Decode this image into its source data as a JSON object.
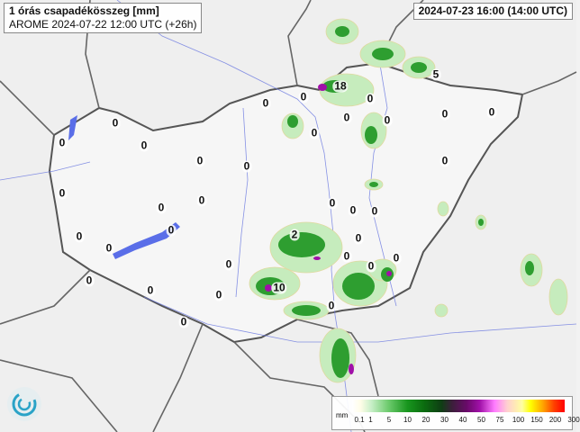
{
  "title": {
    "line1": "1 órás csapadékösszeg [mm]",
    "line2": "AROME 2024-07-22 12:00 UTC (+26h)"
  },
  "valid_time": "2024-07-23 16:00 (14:00 UTC)",
  "legend": {
    "unit": "mm",
    "ticks": [
      "0.1",
      "1",
      "5",
      "10",
      "20",
      "30",
      "40",
      "50",
      "75",
      "100",
      "150",
      "200",
      "300"
    ],
    "colors": [
      "#ffffff",
      "#c8efc8",
      "#18961e",
      "#0f3e14",
      "#6a0a6a",
      "#ff7cff",
      "#ffff00",
      "#ff0000"
    ]
  },
  "stations": [
    "0",
    "0",
    "0",
    "0",
    "0",
    "0",
    "0",
    "0",
    "0",
    "0",
    "0",
    "0",
    "0",
    "0",
    "0",
    "0",
    "0",
    "0",
    "0",
    "0",
    "0",
    "0",
    "0",
    "0",
    "0",
    "0",
    "0",
    "0",
    "0",
    "0",
    "0",
    "0",
    "0",
    "18",
    "5",
    "2",
    "10"
  ],
  "colors": {
    "border": "#555555",
    "river": "#5a6ee8",
    "lake": "#5a6ee8",
    "precip_light": "#b8e8b0",
    "precip_mid": "#2ea02e",
    "precip_heavy": "#a010a8"
  },
  "logo": "met-service-logo"
}
